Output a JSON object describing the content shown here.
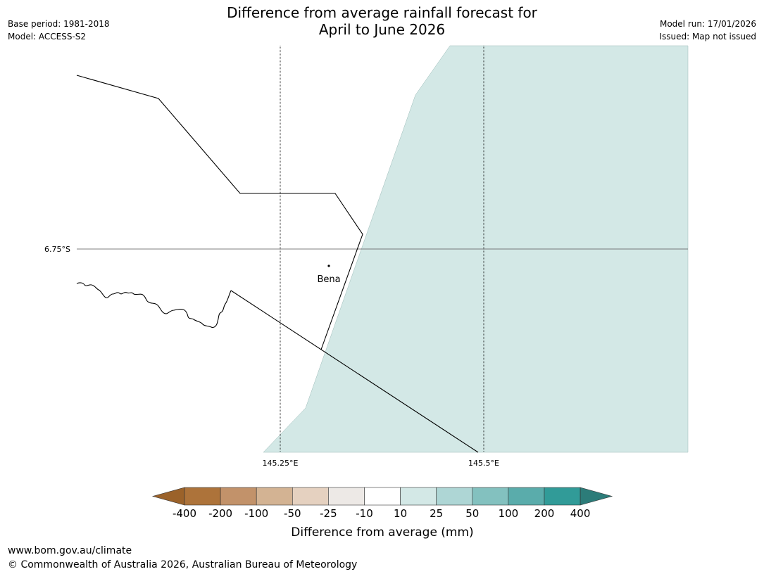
{
  "header": {
    "title_line1": "Difference from average rainfall forecast for",
    "title_line2": "April to June 2026",
    "base_period": "Base period: 1981-2018",
    "model": "Model: ACCESS-S2",
    "model_run": "Model run: 17/01/2026",
    "issued": "Issued: Map not issued"
  },
  "map": {
    "graticule": {
      "lat_label": "6.75°S",
      "lon_labels": [
        "145.25°E",
        "145.5°E"
      ]
    },
    "places": [
      {
        "name": "Bena"
      }
    ],
    "fill_colors": {
      "forecast_area": "#d3e8e6",
      "land": "#ffffff"
    }
  },
  "legend": {
    "title": "Difference from average (mm)",
    "tick_labels": [
      "-400",
      "-200",
      "-100",
      "-50",
      "-25",
      "-10",
      "10",
      "25",
      "50",
      "100",
      "200",
      "400"
    ],
    "colors": {
      "extend_low": "#9b622a",
      "bins": [
        "#ad733a",
        "#c2926a",
        "#d3b393",
        "#e5d1c0",
        "#ede9e6",
        "#ffffff",
        "#d3e8e6",
        "#aed6d5",
        "#83c1bf",
        "#5aacab",
        "#319b98"
      ],
      "extend_high": "#2c7c79"
    }
  },
  "footer": {
    "url": "www.bom.gov.au/climate",
    "copyright": "© Commonwealth of Australia 2026, Australian Bureau of Meteorology"
  }
}
